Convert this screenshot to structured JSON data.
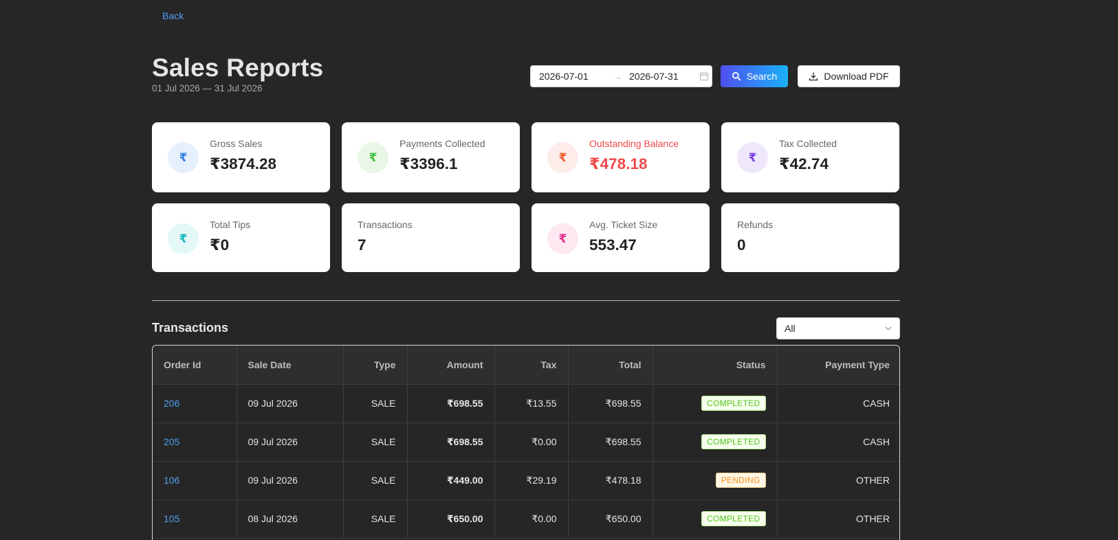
{
  "nav": {
    "back_label": "Back"
  },
  "header": {
    "title": "Sales Reports",
    "subtitle": "01 Jul 2026 — 31 Jul 2026",
    "date_start": "2026-07-01",
    "date_end": "2026-07-31",
    "search_label": "Search",
    "download_label": "Download PDF"
  },
  "cards": [
    {
      "label": "Gross Sales",
      "value": "₹3874.28",
      "icon": "rupee-icon",
      "icon_bg": "#e6f0fd",
      "icon_color": "#2f7fe0"
    },
    {
      "label": "Payments Collected",
      "value": "₹3396.1",
      "icon": "rupee-icon",
      "icon_bg": "#e9f7e6",
      "icon_color": "#3fbf3f"
    },
    {
      "label": "Outstanding Balance",
      "value": "₹478.18",
      "icon": "rupee-icon",
      "icon_bg": "#fdecea",
      "icon_color": "#f0582c",
      "danger": true
    },
    {
      "label": "Tax Collected",
      "value": "₹42.74",
      "icon": "rupee-icon",
      "icon_bg": "#efe8fb",
      "icon_color": "#7a3fe0"
    },
    {
      "label": "Total Tips",
      "value": "₹0",
      "icon": "rupee-icon",
      "icon_bg": "#e4f8f8",
      "icon_color": "#1ab8b8"
    },
    {
      "label": "Transactions",
      "value": "7"
    },
    {
      "label": "Avg. Ticket Size",
      "value": "553.47",
      "icon": "rupee-icon",
      "icon_bg": "#fde7f1",
      "icon_color": "#e0308a"
    },
    {
      "label": "Refunds",
      "value": "0"
    }
  ],
  "transactions": {
    "title": "Transactions",
    "filter_value": "All",
    "columns": [
      "Order Id",
      "Sale Date",
      "Type",
      "Amount",
      "Tax",
      "Total",
      "Status",
      "Payment Type"
    ],
    "rows": [
      {
        "order_id": "206",
        "sale_date": "09 Jul 2026",
        "type": "SALE",
        "amount": "₹698.55",
        "tax": "₹13.55",
        "total": "₹698.55",
        "status": "COMPLETED",
        "payment_type": "CASH"
      },
      {
        "order_id": "205",
        "sale_date": "09 Jul 2026",
        "type": "SALE",
        "amount": "₹698.55",
        "tax": "₹0.00",
        "total": "₹698.55",
        "status": "COMPLETED",
        "payment_type": "CASH"
      },
      {
        "order_id": "106",
        "sale_date": "09 Jul 2026",
        "type": "SALE",
        "amount": "₹449.00",
        "tax": "₹29.19",
        "total": "₹478.18",
        "status": "PENDING",
        "payment_type": "OTHER"
      },
      {
        "order_id": "105",
        "sale_date": "08 Jul 2026",
        "type": "SALE",
        "amount": "₹650.00",
        "tax": "₹0.00",
        "total": "₹650.00",
        "status": "COMPLETED",
        "payment_type": "OTHER"
      }
    ]
  },
  "colors": {
    "accent": "#4f9ff0",
    "danger": "#f04848",
    "background": "#262626"
  }
}
